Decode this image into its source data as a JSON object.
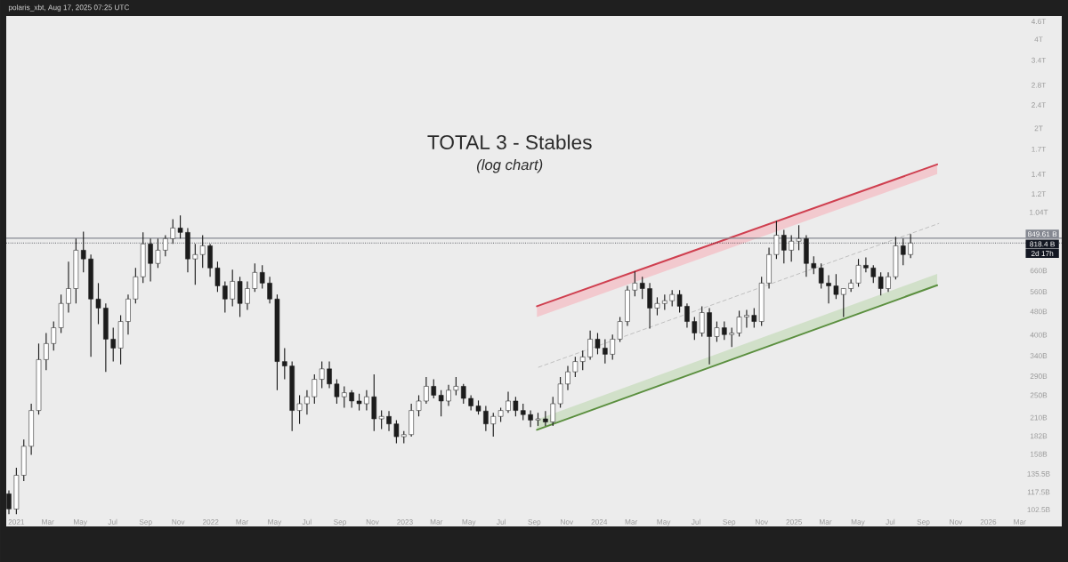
{
  "chart_data": {
    "type": "candlestick",
    "title": "TOTAL 3 - Stables",
    "subtitle": "(log chart)",
    "annotations": [
      "polaris_xbt, Aug 17, 2025 07:25 UTC",
      {
        "text": "2d 17h",
        "y": 818400000000.0
      }
    ],
    "log": "y",
    "xlim": [
      "2020-12-13",
      "2026-05-19"
    ],
    "xticks": [
      {
        "value": "2021-01-01",
        "label": "2021"
      },
      {
        "value": "2021-03-01",
        "label": "Mar"
      },
      {
        "value": "2021-05-01",
        "label": "May"
      },
      {
        "value": "2021-07-01",
        "label": "Jul"
      },
      {
        "value": "2021-09-01",
        "label": "Sep"
      },
      {
        "value": "2021-11-01",
        "label": "Nov"
      },
      {
        "value": "2022-01-01",
        "label": "2022"
      },
      {
        "value": "2022-03-01",
        "label": "Mar"
      },
      {
        "value": "2022-05-01",
        "label": "May"
      },
      {
        "value": "2022-07-01",
        "label": "Jul"
      },
      {
        "value": "2022-09-01",
        "label": "Sep"
      },
      {
        "value": "2022-11-01",
        "label": "Nov"
      },
      {
        "value": "2023-01-01",
        "label": "2023"
      },
      {
        "value": "2023-03-01",
        "label": "Mar"
      },
      {
        "value": "2023-05-01",
        "label": "May"
      },
      {
        "value": "2023-07-01",
        "label": "Jul"
      },
      {
        "value": "2023-09-01",
        "label": "Sep"
      },
      {
        "value": "2023-11-01",
        "label": "Nov"
      },
      {
        "value": "2024-01-01",
        "label": "2024"
      },
      {
        "value": "2024-03-01",
        "label": "Mar"
      },
      {
        "value": "2024-05-01",
        "label": "May"
      },
      {
        "value": "2024-07-01",
        "label": "Jul"
      },
      {
        "value": "2024-09-01",
        "label": "Sep"
      },
      {
        "value": "2024-11-01",
        "label": "Nov"
      },
      {
        "value": "2025-01-01",
        "label": "2025"
      },
      {
        "value": "2025-03-01",
        "label": "Mar"
      },
      {
        "value": "2025-05-01",
        "label": "May"
      },
      {
        "value": "2025-07-01",
        "label": "Jul"
      },
      {
        "value": "2025-09-01",
        "label": "Sep"
      },
      {
        "value": "2025-11-01",
        "label": "Nov"
      },
      {
        "value": "2026-01-01",
        "label": "2026"
      },
      {
        "value": "2026-03-01",
        "label": "Mar"
      }
    ],
    "ylim": [
      90000000000.0,
      4800000000000.0
    ],
    "yticks": [
      {
        "value": 102500000000.0,
        "label": "102.5B"
      },
      {
        "value": 117500000000.0,
        "label": "117.5B"
      },
      {
        "value": 135500000000.0,
        "label": "135.5B"
      },
      {
        "value": 158000000000.0,
        "label": "158B"
      },
      {
        "value": 182000000000.0,
        "label": "182B"
      },
      {
        "value": 210000000000.0,
        "label": "210B"
      },
      {
        "value": 250000000000.0,
        "label": "250B"
      },
      {
        "value": 290000000000.0,
        "label": "290B"
      },
      {
        "value": 340000000000.0,
        "label": "340B"
      },
      {
        "value": 400000000000.0,
        "label": "400B"
      },
      {
        "value": 480000000000.0,
        "label": "480B"
      },
      {
        "value": 560000000000.0,
        "label": "560B"
      },
      {
        "value": 660000000000.0,
        "label": "660B"
      },
      {
        "value": 1040000000000.0,
        "label": "1.04T"
      },
      {
        "value": 1200000000000.0,
        "label": "1.2T"
      },
      {
        "value": 1400000000000.0,
        "label": "1.4T"
      },
      {
        "value": 1700000000000.0,
        "label": "1.7T"
      },
      {
        "value": 2000000000000.0,
        "label": "2T"
      },
      {
        "value": 2400000000000.0,
        "label": "2.4T"
      },
      {
        "value": 2800000000000.0,
        "label": "2.8T"
      },
      {
        "value": 3400000000000.0,
        "label": "3.4T"
      },
      {
        "value": 4000000000000.0,
        "label": "4T"
      },
      {
        "value": 4600000000000.0,
        "label": "4.6T"
      }
    ],
    "ref_lines": [
      {
        "axis": "y",
        "value": 849610000000.0,
        "label": "849.61 B",
        "color": "#858891",
        "line_style": "solid"
      },
      {
        "axis": "y",
        "value": 818400000000.0,
        "label": "818.4 B",
        "color": "#131722",
        "line_style": "dotted"
      }
    ],
    "series": [
      {
        "type": "line",
        "x": [
          "2023-09-06",
          "2025-09-27"
        ],
        "values": [
          500000000000.0,
          1510000000000.0
        ],
        "lower": [
          460000000000.0,
          1400000000000.0
        ],
        "upper": [
          500000000000.0,
          1510000000000.0
        ],
        "color": "#cf3f4f"
      },
      {
        "type": "line",
        "x": [
          "2023-09-06",
          "2025-09-27"
        ],
        "values": [
          191000000000.0,
          589000000000.0
        ],
        "lower": [
          191000000000.0,
          589000000000.0
        ],
        "upper": [
          207000000000.0,
          643000000000.0
        ],
        "color": "#5b8f3f"
      },
      {
        "type": "line",
        "x": [
          "2023-09-09",
          "2025-09-30"
        ],
        "values": [
          311000000000.0,
          953000000000.0
        ],
        "color": "#b4b4b4",
        "line_style": "dashed"
      },
      {
        "color": "#1c1c1c",
        "x": [
          "2020-12-18",
          "2021-01-01",
          "2021-01-15",
          "2021-01-29",
          "2021-02-12",
          "2021-02-26",
          "2021-03-12",
          "2021-03-26",
          "2021-04-09",
          "2021-04-23",
          "2021-05-07",
          "2021-05-21",
          "2021-06-04",
          "2021-06-18",
          "2021-07-02",
          "2021-07-16",
          "2021-07-30",
          "2021-08-13",
          "2021-08-27",
          "2021-09-10",
          "2021-09-24",
          "2021-10-08",
          "2021-10-22",
          "2021-11-05",
          "2021-11-19",
          "2021-12-03",
          "2021-12-17",
          "2021-12-31",
          "2022-01-14",
          "2022-01-28",
          "2022-02-11",
          "2022-02-25",
          "2022-03-11",
          "2022-03-25",
          "2022-04-08",
          "2022-04-22",
          "2022-05-06",
          "2022-05-20",
          "2022-06-03",
          "2022-06-17",
          "2022-07-01",
          "2022-07-15",
          "2022-07-29",
          "2022-08-12",
          "2022-08-26",
          "2022-09-09",
          "2022-09-23",
          "2022-10-07",
          "2022-10-21",
          "2022-11-04",
          "2022-11-18",
          "2022-12-02",
          "2022-12-16",
          "2022-12-30",
          "2023-01-13",
          "2023-01-27",
          "2023-02-10",
          "2023-02-24",
          "2023-03-10",
          "2023-03-24",
          "2023-04-07",
          "2023-04-21",
          "2023-05-05",
          "2023-05-19",
          "2023-06-02",
          "2023-06-16",
          "2023-06-30",
          "2023-07-14",
          "2023-07-28",
          "2023-08-11",
          "2023-08-25",
          "2023-09-08",
          "2023-09-22",
          "2023-10-06",
          "2023-10-20",
          "2023-11-03",
          "2023-11-17",
          "2023-12-01",
          "2023-12-15",
          "2023-12-29",
          "2024-01-12",
          "2024-01-26",
          "2024-02-09",
          "2024-02-23",
          "2024-03-08",
          "2024-03-22",
          "2024-04-05",
          "2024-04-19",
          "2024-05-03",
          "2024-05-17",
          "2024-05-31",
          "2024-06-14",
          "2024-06-28",
          "2024-07-12",
          "2024-07-26",
          "2024-08-09",
          "2024-08-23",
          "2024-09-06",
          "2024-09-20",
          "2024-10-04",
          "2024-10-18",
          "2024-11-01",
          "2024-11-15",
          "2024-11-29",
          "2024-12-13",
          "2024-12-27",
          "2025-01-10",
          "2025-01-24",
          "2025-02-07",
          "2025-02-21",
          "2025-03-07",
          "2025-03-21",
          "2025-04-04",
          "2025-04-18",
          "2025-05-02",
          "2025-05-16",
          "2025-05-30",
          "2025-06-13",
          "2025-06-27",
          "2025-07-11",
          "2025-07-25",
          "2025-08-08"
        ],
        "ohlc": [
          [
            116000000000.0,
            119000000000.0,
            99000000000.0,
            103000000000.0
          ],
          [
            103000000000.0,
            142000000000.0,
            99000000000.0,
            134000000000.0
          ],
          [
            134000000000.0,
            177000000000.0,
            128000000000.0,
            168000000000.0
          ],
          [
            168000000000.0,
            234000000000.0,
            157000000000.0,
            222000000000.0
          ],
          [
            222000000000.0,
            374000000000.0,
            215000000000.0,
            330000000000.0
          ],
          [
            330000000000.0,
            406000000000.0,
            304000000000.0,
            374000000000.0
          ],
          [
            374000000000.0,
            444000000000.0,
            354000000000.0,
            423000000000.0
          ],
          [
            423000000000.0,
            548000000000.0,
            406000000000.0,
            511000000000.0
          ],
          [
            511000000000.0,
            708000000000.0,
            476000000000.0,
            574000000000.0
          ],
          [
            574000000000.0,
            847000000000.0,
            511000000000.0,
            774000000000.0
          ],
          [
            774000000000.0,
            895000000000.0,
            651000000000.0,
            723000000000.0
          ],
          [
            723000000000.0,
            748000000000.0,
            337000000000.0,
            529000000000.0
          ],
          [
            529000000000.0,
            599000000000.0,
            435000000000.0,
            493000000000.0
          ],
          [
            493000000000.0,
            511000000000.0,
            300000000000.0,
            387000000000.0
          ],
          [
            387000000000.0,
            423000000000.0,
            325000000000.0,
            361000000000.0
          ],
          [
            361000000000.0,
            466000000000.0,
            318000000000.0,
            444000000000.0
          ],
          [
            444000000000.0,
            548000000000.0,
            401000000000.0,
            529000000000.0
          ],
          [
            529000000000.0,
            674000000000.0,
            511000000000.0,
            629000000000.0
          ],
          [
            629000000000.0,
            889000000000.0,
            599000000000.0,
            813000000000.0
          ],
          [
            813000000000.0,
            847000000000.0,
            607000000000.0,
            698000000000.0
          ],
          [
            698000000000.0,
            847000000000.0,
            674000000000.0,
            774000000000.0
          ],
          [
            774000000000.0,
            870000000000.0,
            738000000000.0,
            847000000000.0
          ],
          [
            847000000000.0,
            986000000000.0,
            813000000000.0,
            920000000000.0
          ],
          [
            920000000000.0,
            1014000000000.0,
            847000000000.0,
            889000000000.0
          ],
          [
            889000000000.0,
            920000000000.0,
            651000000000.0,
            723000000000.0
          ],
          [
            723000000000.0,
            813000000000.0,
            591000000000.0,
            748000000000.0
          ],
          [
            748000000000.0,
            870000000000.0,
            674000000000.0,
            801000000000.0
          ],
          [
            801000000000.0,
            813000000000.0,
            629000000000.0,
            674000000000.0
          ],
          [
            674000000000.0,
            708000000000.0,
            559000000000.0,
            586000000000.0
          ],
          [
            586000000000.0,
            607000000000.0,
            476000000000.0,
            529000000000.0
          ],
          [
            529000000000.0,
            665000000000.0,
            500000000000.0,
            607000000000.0
          ],
          [
            607000000000.0,
            629000000000.0,
            460000000000.0,
            511000000000.0
          ],
          [
            511000000000.0,
            607000000000.0,
            486000000000.0,
            574000000000.0
          ],
          [
            574000000000.0,
            698000000000.0,
            559000000000.0,
            651000000000.0
          ],
          [
            651000000000.0,
            688000000000.0,
            574000000000.0,
            599000000000.0
          ],
          [
            599000000000.0,
            629000000000.0,
            511000000000.0,
            529000000000.0
          ],
          [
            529000000000.0,
            548000000000.0,
            260000000000.0,
            325000000000.0
          ],
          [
            325000000000.0,
            361000000000.0,
            283000000000.0,
            314000000000.0
          ],
          [
            314000000000.0,
            325000000000.0,
            189000000000.0,
            222000000000.0
          ],
          [
            222000000000.0,
            250000000000.0,
            200000000000.0,
            234000000000.0
          ],
          [
            234000000000.0,
            260000000000.0,
            215000000000.0,
            247000000000.0
          ],
          [
            247000000000.0,
            294000000000.0,
            234000000000.0,
            283000000000.0
          ],
          [
            283000000000.0,
            325000000000.0,
            264000000000.0,
            307000000000.0
          ],
          [
            307000000000.0,
            325000000000.0,
            264000000000.0,
            273000000000.0
          ],
          [
            273000000000.0,
            283000000000.0,
            234000000000.0,
            247000000000.0
          ],
          [
            247000000000.0,
            268000000000.0,
            227000000000.0,
            255000000000.0
          ],
          [
            255000000000.0,
            260000000000.0,
            227000000000.0,
            239000000000.0
          ],
          [
            239000000000.0,
            253000000000.0,
            222000000000.0,
            234000000000.0
          ],
          [
            234000000000.0,
            260000000000.0,
            222000000000.0,
            247000000000.0
          ],
          [
            247000000000.0,
            294000000000.0,
            189000000000.0,
            208000000000.0
          ],
          [
            208000000000.0,
            222000000000.0,
            192000000000.0,
            212000000000.0
          ],
          [
            212000000000.0,
            221000000000.0,
            189000000000.0,
            200000000000.0
          ],
          [
            200000000000.0,
            206000000000.0,
            172000000000.0,
            181000000000.0
          ],
          [
            181000000000.0,
            189000000000.0,
            172000000000.0,
            184000000000.0
          ],
          [
            184000000000.0,
            234000000000.0,
            181000000000.0,
            222000000000.0
          ],
          [
            222000000000.0,
            250000000000.0,
            212000000000.0,
            239000000000.0
          ],
          [
            239000000000.0,
            288000000000.0,
            234000000000.0,
            268000000000.0
          ],
          [
            268000000000.0,
            283000000000.0,
            244000000000.0,
            250000000000.0
          ],
          [
            250000000000.0,
            260000000000.0,
            212000000000.0,
            239000000000.0
          ],
          [
            239000000000.0,
            271000000000.0,
            230000000000.0,
            260000000000.0
          ],
          [
            260000000000.0,
            288000000000.0,
            250000000000.0,
            268000000000.0
          ],
          [
            268000000000.0,
            273000000000.0,
            234000000000.0,
            244000000000.0
          ],
          [
            244000000000.0,
            250000000000.0,
            222000000000.0,
            230000000000.0
          ],
          [
            230000000000.0,
            240000000000.0,
            215000000000.0,
            221000000000.0
          ],
          [
            221000000000.0,
            230000000000.0,
            189000000000.0,
            200000000000.0
          ],
          [
            200000000000.0,
            218000000000.0,
            181000000000.0,
            212000000000.0
          ],
          [
            212000000000.0,
            227000000000.0,
            203000000000.0,
            222000000000.0
          ],
          [
            222000000000.0,
            257000000000.0,
            218000000000.0,
            239000000000.0
          ],
          [
            239000000000.0,
            247000000000.0,
            212000000000.0,
            222000000000.0
          ],
          [
            222000000000.0,
            234000000000.0,
            206000000000.0,
            215000000000.0
          ],
          [
            215000000000.0,
            222000000000.0,
            195000000000.0,
            206000000000.0
          ],
          [
            206000000000.0,
            218000000000.0,
            197000000000.0,
            208000000000.0
          ],
          [
            208000000000.0,
            221000000000.0,
            197000000000.0,
            203000000000.0
          ],
          [
            203000000000.0,
            247000000000.0,
            197000000000.0,
            234000000000.0
          ],
          [
            234000000000.0,
            288000000000.0,
            227000000000.0,
            273000000000.0
          ],
          [
            273000000000.0,
            314000000000.0,
            260000000000.0,
            300000000000.0
          ],
          [
            300000000000.0,
            337000000000.0,
            288000000000.0,
            325000000000.0
          ],
          [
            325000000000.0,
            354000000000.0,
            304000000000.0,
            337000000000.0
          ],
          [
            337000000000.0,
            414000000000.0,
            330000000000.0,
            387000000000.0
          ],
          [
            387000000000.0,
            406000000000.0,
            344000000000.0,
            361000000000.0
          ],
          [
            361000000000.0,
            387000000000.0,
            320000000000.0,
            344000000000.0
          ],
          [
            344000000000.0,
            401000000000.0,
            330000000000.0,
            387000000000.0
          ],
          [
            387000000000.0,
            460000000000.0,
            379000000000.0,
            444000000000.0
          ],
          [
            444000000000.0,
            586000000000.0,
            429000000000.0,
            567000000000.0
          ],
          [
            567000000000.0,
            656000000000.0,
            540000000000.0,
            599000000000.0
          ],
          [
            599000000000.0,
            629000000000.0,
            529000000000.0,
            574000000000.0
          ],
          [
            574000000000.0,
            599000000000.0,
            420000000000.0,
            493000000000.0
          ],
          [
            493000000000.0,
            536000000000.0,
            466000000000.0,
            511000000000.0
          ],
          [
            511000000000.0,
            548000000000.0,
            486000000000.0,
            522000000000.0
          ],
          [
            522000000000.0,
            567000000000.0,
            500000000000.0,
            548000000000.0
          ],
          [
            548000000000.0,
            567000000000.0,
            476000000000.0,
            500000000000.0
          ],
          [
            500000000000.0,
            511000000000.0,
            423000000000.0,
            444000000000.0
          ],
          [
            444000000000.0,
            460000000000.0,
            385000000000.0,
            406000000000.0
          ],
          [
            406000000000.0,
            500000000000.0,
            395000000000.0,
            476000000000.0
          ],
          [
            476000000000.0,
            493000000000.0,
            318000000000.0,
            395000000000.0
          ],
          [
            395000000000.0,
            444000000000.0,
            379000000000.0,
            423000000000.0
          ],
          [
            423000000000.0,
            444000000000.0,
            385000000000.0,
            401000000000.0
          ],
          [
            401000000000.0,
            423000000000.0,
            364000000000.0,
            406000000000.0
          ],
          [
            406000000000.0,
            483000000000.0,
            395000000000.0,
            460000000000.0
          ],
          [
            460000000000.0,
            486000000000.0,
            423000000000.0,
            466000000000.0
          ],
          [
            466000000000.0,
            493000000000.0,
            423000000000.0,
            444000000000.0
          ],
          [
            444000000000.0,
            629000000000.0,
            429000000000.0,
            599000000000.0
          ],
          [
            599000000000.0,
            790000000000.0,
            574000000000.0,
            748000000000.0
          ],
          [
            748000000000.0,
            972000000000.0,
            723000000000.0,
            870000000000.0
          ],
          [
            870000000000.0,
            907000000000.0,
            698000000000.0,
            774000000000.0
          ],
          [
            774000000000.0,
            870000000000.0,
            708000000000.0,
            830000000000.0
          ],
          [
            830000000000.0,
            940000000000.0,
            774000000000.0,
            847000000000.0
          ],
          [
            847000000000.0,
            870000000000.0,
            629000000000.0,
            698000000000.0
          ],
          [
            698000000000.0,
            738000000000.0,
            642000000000.0,
            674000000000.0
          ],
          [
            674000000000.0,
            698000000000.0,
            574000000000.0,
            599000000000.0
          ],
          [
            599000000000.0,
            637000000000.0,
            511000000000.0,
            586000000000.0
          ],
          [
            586000000000.0,
            642000000000.0,
            529000000000.0,
            548000000000.0
          ],
          [
            548000000000.0,
            574000000000.0,
            460000000000.0,
            574000000000.0
          ],
          [
            574000000000.0,
            616000000000.0,
            559000000000.0,
            599000000000.0
          ],
          [
            599000000000.0,
            723000000000.0,
            582000000000.0,
            688000000000.0
          ],
          [
            688000000000.0,
            732000000000.0,
            651000000000.0,
            674000000000.0
          ],
          [
            674000000000.0,
            688000000000.0,
            599000000000.0,
            629000000000.0
          ],
          [
            629000000000.0,
            651000000000.0,
            544000000000.0,
            574000000000.0
          ],
          [
            574000000000.0,
            651000000000.0,
            559000000000.0,
            629000000000.0
          ],
          [
            629000000000.0,
            859000000000.0,
            616000000000.0,
            801000000000.0
          ],
          [
            801000000000.0,
            847000000000.0,
            688000000000.0,
            748000000000.0
          ],
          [
            748000000000.0,
            877000000000.0,
            728000000000.0,
            818400000000.0
          ]
        ]
      }
    ]
  }
}
